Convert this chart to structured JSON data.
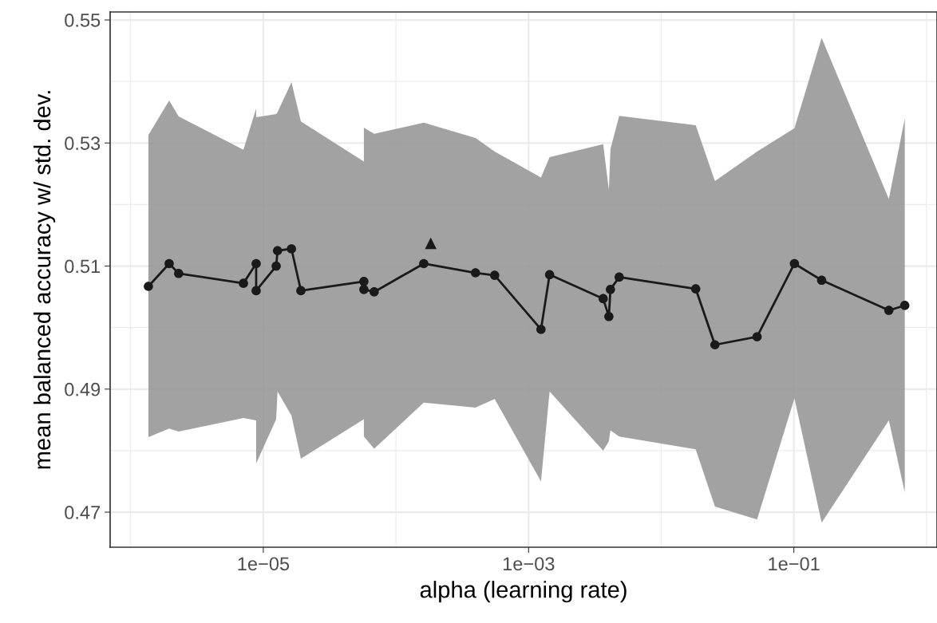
{
  "chart_data": {
    "type": "line",
    "xlabel": "alpha (learning rate)",
    "ylabel": "mean balanced accuracy w/ std. dev.",
    "log": "x",
    "grid": true,
    "marker": "circle",
    "line_style": "solid",
    "xlim": [
      7e-07,
      1.2
    ],
    "ylim": [
      0.4643,
      0.5513
    ],
    "xticks": [
      {
        "value": 1e-06,
        "label": null
      },
      {
        "value": 1e-05,
        "label": "1e−05"
      },
      {
        "value": 0.0001,
        "label": null
      },
      {
        "value": 0.001,
        "label": "1e−03"
      },
      {
        "value": 0.01,
        "label": null
      },
      {
        "value": 0.1,
        "label": "1e−01"
      },
      {
        "value": 1,
        "label": null
      }
    ],
    "yticks": [
      0.47,
      {
        "value": 0.48,
        "label": null
      },
      0.49,
      {
        "value": 0.5,
        "label": null
      },
      0.51,
      {
        "value": 0.52,
        "label": null
      },
      0.53,
      {
        "value": 0.54,
        "label": null
      },
      0.55
    ],
    "series": [
      {
        "color": "#1a1a1a",
        "x": [
          1.36e-06,
          1.95e-06,
          2.3e-06,
          7.08e-06,
          8.83e-06,
          8.83e-06,
          1.25e-05,
          1.28e-05,
          1.63e-05,
          1.92e-05,
          5.73e-05,
          5.73e-05,
          6.85e-05,
          0.000162,
          0.000398,
          0.000555,
          0.00124,
          0.00144,
          0.00365,
          0.00403,
          0.00414,
          0.00482,
          0.0182,
          0.0254,
          0.0528,
          0.101,
          0.162,
          0.52,
          0.686
        ],
        "values": [
          0.5067,
          0.5104,
          0.5088,
          0.5072,
          0.5104,
          0.506,
          0.51,
          0.5125,
          0.5128,
          0.506,
          0.5075,
          0.5062,
          0.5058,
          0.5104,
          0.5089,
          0.5085,
          0.4997,
          0.5086,
          0.5047,
          0.5018,
          0.5062,
          0.5082,
          0.5063,
          0.4972,
          0.4985,
          0.5104,
          0.5077,
          0.5028,
          0.5036
        ],
        "upper": [
          0.5313,
          0.5369,
          0.5343,
          0.5289,
          0.5356,
          0.5342,
          0.5347,
          0.535,
          0.5399,
          0.5335,
          0.527,
          0.5325,
          0.5315,
          0.5333,
          0.5308,
          0.5286,
          0.5244,
          0.5277,
          0.5298,
          0.5224,
          0.529,
          0.5344,
          0.5329,
          0.5238,
          0.5286,
          0.5324,
          0.5471,
          0.5209,
          0.534
        ],
        "lower": [
          0.4822,
          0.4836,
          0.4831,
          0.4853,
          0.4849,
          0.4779,
          0.4851,
          0.4896,
          0.4857,
          0.4787,
          0.4851,
          0.4823,
          0.4803,
          0.4878,
          0.487,
          0.4884,
          0.475,
          0.4896,
          0.48,
          0.4815,
          0.4833,
          0.4823,
          0.4802,
          0.4709,
          0.4688,
          0.4885,
          0.4683,
          0.4849,
          0.4732
        ]
      },
      {
        "type": "scatter",
        "color": "#1a1a1a",
        "marker": "triangle",
        "x": [
          0.000183
        ],
        "values": [
          0.5137
        ]
      }
    ]
  }
}
